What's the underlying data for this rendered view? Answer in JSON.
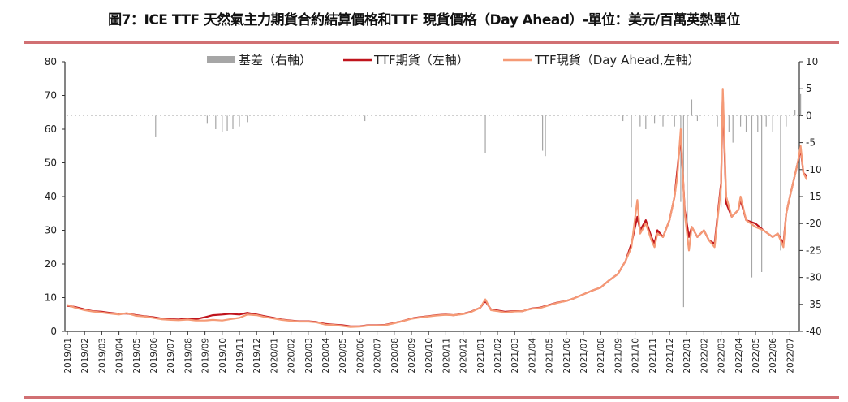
{
  "chart_data": {
    "type": "line",
    "title": "圖7：ICE TTF 天然氣主力期貨合約結算價格和TTF 現貨價格（Day Ahead）-單位：美元/百萬英熱單位",
    "legend_position": "top",
    "grid": false,
    "y_left": {
      "range": [
        0,
        80
      ],
      "ticks": [
        0,
        10,
        20,
        30,
        40,
        50,
        60,
        70,
        80
      ]
    },
    "y_right": {
      "range": [
        -40,
        10
      ],
      "ticks": [
        -40,
        -35,
        -30,
        -25,
        -20,
        -15,
        -10,
        -5,
        0,
        5,
        10
      ]
    },
    "x_ticks": [
      "2019/01",
      "2019/02",
      "2019/03",
      "2019/04",
      "2019/05",
      "2019/06",
      "2019/07",
      "2019/08",
      "2019/09",
      "2019/10",
      "2019/11",
      "2019/12",
      "2020/01",
      "2020/02",
      "2020/03",
      "2020/04",
      "2020/05",
      "2020/06",
      "2020/07",
      "2020/08",
      "2020/09",
      "2020/10",
      "2020/11",
      "2020/12",
      "2021/01",
      "2021/02",
      "2021/03",
      "2021/04",
      "2021/05",
      "2021/06",
      "2021/07",
      "2021/08",
      "2021/09",
      "2021/10",
      "2021/11",
      "2021/12",
      "2022/01",
      "2022/02",
      "2022/03",
      "2022/04",
      "2022/05",
      "2022/06",
      "2022/07"
    ],
    "colors": {
      "basis": "#a6a6a6",
      "futures": "#c0141c",
      "spot": "#f59a76"
    },
    "series": [
      {
        "name": "基差（右軸）",
        "axis": "right",
        "kind": "bar",
        "data": [
          [
            "2019-06-05",
            -4
          ],
          [
            "2019-09-05",
            -1.5
          ],
          [
            "2019-09-20",
            -2.5
          ],
          [
            "2019-10-01",
            -3
          ],
          [
            "2019-10-10",
            -2.8
          ],
          [
            "2019-10-20",
            -2.5
          ],
          [
            "2019-11-01",
            -2
          ],
          [
            "2019-11-15",
            -1.2
          ],
          [
            "2020-06-10",
            -1
          ],
          [
            "2021-01-10",
            -7
          ],
          [
            "2021-04-20",
            -6.5
          ],
          [
            "2021-04-25",
            -7.5
          ],
          [
            "2021-09-10",
            -1
          ],
          [
            "2021-09-25",
            -17
          ],
          [
            "2021-10-10",
            -2
          ],
          [
            "2021-10-20",
            -2.5
          ],
          [
            "2021-11-05",
            -1.5
          ],
          [
            "2021-11-20",
            -2
          ],
          [
            "2021-12-10",
            -2
          ],
          [
            "2021-12-21",
            -16
          ],
          [
            "2021-12-26",
            -35.5
          ],
          [
            "2022-01-02",
            -24
          ],
          [
            "2022-01-10",
            3
          ],
          [
            "2022-01-20",
            -1
          ],
          [
            "2022-02-25",
            -2
          ],
          [
            "2022-03-01",
            -17
          ],
          [
            "2022-03-06",
            -4
          ],
          [
            "2022-03-15",
            -3
          ],
          [
            "2022-03-22",
            -5
          ],
          [
            "2022-04-05",
            -2
          ],
          [
            "2022-04-15",
            -3
          ],
          [
            "2022-04-25",
            -30
          ],
          [
            "2022-05-05",
            -3
          ],
          [
            "2022-05-12",
            -29
          ],
          [
            "2022-05-20",
            -2
          ],
          [
            "2022-06-01",
            -3
          ],
          [
            "2022-06-15",
            -25
          ],
          [
            "2022-06-25",
            -2
          ],
          [
            "2022-07-10",
            1
          ],
          [
            "2022-07-20",
            4
          ]
        ]
      },
      {
        "name": "TTF期貨（左軸）",
        "axis": "left",
        "kind": "line",
        "data": [
          [
            "2019-01-01",
            7.6
          ],
          [
            "2019-01-15",
            7.2
          ],
          [
            "2019-02-01",
            6.5
          ],
          [
            "2019-02-15",
            6.0
          ],
          [
            "2019-03-01",
            5.8
          ],
          [
            "2019-03-15",
            5.5
          ],
          [
            "2019-04-01",
            5.2
          ],
          [
            "2019-04-15",
            5.3
          ],
          [
            "2019-05-01",
            4.8
          ],
          [
            "2019-05-15",
            4.5
          ],
          [
            "2019-06-01",
            4.2
          ],
          [
            "2019-06-15",
            3.8
          ],
          [
            "2019-07-01",
            3.6
          ],
          [
            "2019-07-15",
            3.5
          ],
          [
            "2019-08-01",
            3.8
          ],
          [
            "2019-08-15",
            3.6
          ],
          [
            "2019-09-01",
            4.2
          ],
          [
            "2019-09-15",
            4.8
          ],
          [
            "2019-10-01",
            5.0
          ],
          [
            "2019-10-15",
            5.2
          ],
          [
            "2019-11-01",
            5.0
          ],
          [
            "2019-11-15",
            5.5
          ],
          [
            "2019-12-01",
            5.0
          ],
          [
            "2019-12-15",
            4.5
          ],
          [
            "2020-01-01",
            4.0
          ],
          [
            "2020-01-15",
            3.5
          ],
          [
            "2020-02-01",
            3.2
          ],
          [
            "2020-02-15",
            3.0
          ],
          [
            "2020-03-01",
            3.0
          ],
          [
            "2020-03-15",
            2.8
          ],
          [
            "2020-04-01",
            2.2
          ],
          [
            "2020-04-15",
            2.0
          ],
          [
            "2020-05-01",
            1.8
          ],
          [
            "2020-05-15",
            1.5
          ],
          [
            "2020-06-01",
            1.5
          ],
          [
            "2020-06-15",
            1.8
          ],
          [
            "2020-07-01",
            1.8
          ],
          [
            "2020-07-15",
            1.9
          ],
          [
            "2020-08-01",
            2.5
          ],
          [
            "2020-08-15",
            3.0
          ],
          [
            "2020-09-01",
            3.8
          ],
          [
            "2020-09-15",
            4.2
          ],
          [
            "2020-10-01",
            4.5
          ],
          [
            "2020-10-15",
            4.8
          ],
          [
            "2020-11-01",
            5.0
          ],
          [
            "2020-11-15",
            4.8
          ],
          [
            "2020-12-01",
            5.2
          ],
          [
            "2020-12-15",
            5.8
          ],
          [
            "2021-01-01",
            7.0
          ],
          [
            "2021-01-10",
            9.0
          ],
          [
            "2021-01-20",
            6.5
          ],
          [
            "2021-02-01",
            6.2
          ],
          [
            "2021-02-15",
            5.8
          ],
          [
            "2021-03-01",
            6.0
          ],
          [
            "2021-03-15",
            6.0
          ],
          [
            "2021-04-01",
            6.8
          ],
          [
            "2021-04-15",
            7.0
          ],
          [
            "2021-05-01",
            7.8
          ],
          [
            "2021-05-15",
            8.5
          ],
          [
            "2021-06-01",
            9.0
          ],
          [
            "2021-06-15",
            9.8
          ],
          [
            "2021-07-01",
            11.0
          ],
          [
            "2021-07-15",
            12.0
          ],
          [
            "2021-08-01",
            13.0
          ],
          [
            "2021-08-15",
            15.0
          ],
          [
            "2021-09-01",
            17.0
          ],
          [
            "2021-09-15",
            21
          ],
          [
            "2021-09-25",
            26
          ],
          [
            "2021-10-05",
            34
          ],
          [
            "2021-10-10",
            30
          ],
          [
            "2021-10-20",
            33
          ],
          [
            "2021-10-30",
            28
          ],
          [
            "2021-11-05",
            26
          ],
          [
            "2021-11-10",
            30
          ],
          [
            "2021-11-20",
            28
          ],
          [
            "2021-12-01",
            33
          ],
          [
            "2021-12-10",
            40
          ],
          [
            "2021-12-15",
            48
          ],
          [
            "2021-12-21",
            58
          ],
          [
            "2021-12-28",
            36
          ],
          [
            "2022-01-05",
            28
          ],
          [
            "2022-01-10",
            31
          ],
          [
            "2022-01-20",
            28
          ],
          [
            "2022-02-01",
            30
          ],
          [
            "2022-02-10",
            27
          ],
          [
            "2022-02-20",
            26
          ],
          [
            "2022-03-01",
            44
          ],
          [
            "2022-03-04",
            70
          ],
          [
            "2022-03-10",
            38
          ],
          [
            "2022-03-20",
            34
          ],
          [
            "2022-04-01",
            36
          ],
          [
            "2022-04-05",
            39
          ],
          [
            "2022-04-15",
            33
          ],
          [
            "2022-05-01",
            32
          ],
          [
            "2022-05-15",
            30
          ],
          [
            "2022-06-01",
            28
          ],
          [
            "2022-06-10",
            29
          ],
          [
            "2022-06-20",
            26
          ],
          [
            "2022-06-25",
            35
          ],
          [
            "2022-07-01",
            40
          ],
          [
            "2022-07-15",
            50
          ],
          [
            "2022-07-20",
            54
          ],
          [
            "2022-07-25",
            47
          ],
          [
            "2022-07-31",
            46
          ]
        ]
      },
      {
        "name": "TTF現貨（Day Ahead,左軸）",
        "axis": "left",
        "kind": "line",
        "data": [
          [
            "2019-01-01",
            7.8
          ],
          [
            "2019-01-15",
            7.0
          ],
          [
            "2019-02-01",
            6.3
          ],
          [
            "2019-02-15",
            5.9
          ],
          [
            "2019-03-01",
            5.6
          ],
          [
            "2019-03-15",
            5.3
          ],
          [
            "2019-04-01",
            5.0
          ],
          [
            "2019-04-15",
            5.4
          ],
          [
            "2019-05-01",
            4.6
          ],
          [
            "2019-05-15",
            4.4
          ],
          [
            "2019-06-01",
            4.0
          ],
          [
            "2019-06-15",
            3.6
          ],
          [
            "2019-07-01",
            3.4
          ],
          [
            "2019-07-15",
            3.3
          ],
          [
            "2019-08-01",
            3.5
          ],
          [
            "2019-08-15",
            3.2
          ],
          [
            "2019-09-01",
            3.2
          ],
          [
            "2019-09-15",
            3.4
          ],
          [
            "2019-10-01",
            3.2
          ],
          [
            "2019-10-15",
            3.6
          ],
          [
            "2019-11-01",
            4.0
          ],
          [
            "2019-11-15",
            5.0
          ],
          [
            "2019-12-01",
            4.8
          ],
          [
            "2019-12-15",
            4.3
          ],
          [
            "2020-01-01",
            3.8
          ],
          [
            "2020-01-15",
            3.4
          ],
          [
            "2020-02-01",
            3.1
          ],
          [
            "2020-02-15",
            2.9
          ],
          [
            "2020-03-01",
            2.9
          ],
          [
            "2020-03-15",
            2.7
          ],
          [
            "2020-04-01",
            2.0
          ],
          [
            "2020-04-15",
            1.9
          ],
          [
            "2020-05-01",
            1.6
          ],
          [
            "2020-05-15",
            1.3
          ],
          [
            "2020-06-01",
            1.4
          ],
          [
            "2020-06-15",
            1.7
          ],
          [
            "2020-07-01",
            1.7
          ],
          [
            "2020-07-15",
            1.8
          ],
          [
            "2020-08-01",
            2.4
          ],
          [
            "2020-08-15",
            3.0
          ],
          [
            "2020-09-01",
            3.7
          ],
          [
            "2020-09-15",
            4.1
          ],
          [
            "2020-10-01",
            4.4
          ],
          [
            "2020-10-15",
            4.7
          ],
          [
            "2020-11-01",
            4.9
          ],
          [
            "2020-11-15",
            4.8
          ],
          [
            "2020-12-01",
            5.1
          ],
          [
            "2020-12-15",
            5.7
          ],
          [
            "2021-01-01",
            7.0
          ],
          [
            "2021-01-10",
            9.5
          ],
          [
            "2021-01-20",
            6.3
          ],
          [
            "2021-02-01",
            6.0
          ],
          [
            "2021-02-15",
            5.6
          ],
          [
            "2021-03-01",
            5.9
          ],
          [
            "2021-03-15",
            6.0
          ],
          [
            "2021-04-01",
            6.7
          ],
          [
            "2021-04-15",
            6.9
          ],
          [
            "2021-05-01",
            7.7
          ],
          [
            "2021-05-15",
            8.4
          ],
          [
            "2021-06-01",
            9.0
          ],
          [
            "2021-06-15",
            9.8
          ],
          [
            "2021-07-01",
            11.0
          ],
          [
            "2021-07-15",
            12.0
          ],
          [
            "2021-08-01",
            13.0
          ],
          [
            "2021-08-15",
            15.0
          ],
          [
            "2021-09-01",
            17.0
          ],
          [
            "2021-09-15",
            21
          ],
          [
            "2021-09-25",
            25
          ],
          [
            "2021-10-05",
            39
          ],
          [
            "2021-10-10",
            29
          ],
          [
            "2021-10-20",
            32
          ],
          [
            "2021-10-30",
            27
          ],
          [
            "2021-11-05",
            25
          ],
          [
            "2021-11-10",
            29
          ],
          [
            "2021-11-20",
            28
          ],
          [
            "2021-12-01",
            33
          ],
          [
            "2021-12-10",
            40
          ],
          [
            "2021-12-15",
            46
          ],
          [
            "2021-12-21",
            60
          ],
          [
            "2021-12-28",
            35
          ],
          [
            "2022-01-05",
            24
          ],
          [
            "2022-01-10",
            31
          ],
          [
            "2022-01-20",
            28
          ],
          [
            "2022-02-01",
            30
          ],
          [
            "2022-02-10",
            27
          ],
          [
            "2022-02-20",
            25
          ],
          [
            "2022-03-01",
            43
          ],
          [
            "2022-03-04",
            72
          ],
          [
            "2022-03-10",
            40
          ],
          [
            "2022-03-20",
            34
          ],
          [
            "2022-04-01",
            36
          ],
          [
            "2022-04-05",
            40
          ],
          [
            "2022-04-15",
            33
          ],
          [
            "2022-05-01",
            31
          ],
          [
            "2022-05-15",
            30
          ],
          [
            "2022-06-01",
            28
          ],
          [
            "2022-06-10",
            29
          ],
          [
            "2022-06-20",
            25
          ],
          [
            "2022-06-25",
            35
          ],
          [
            "2022-07-01",
            40
          ],
          [
            "2022-07-15",
            50
          ],
          [
            "2022-07-20",
            55
          ],
          [
            "2022-07-25",
            47
          ],
          [
            "2022-07-31",
            45
          ]
        ]
      }
    ]
  }
}
